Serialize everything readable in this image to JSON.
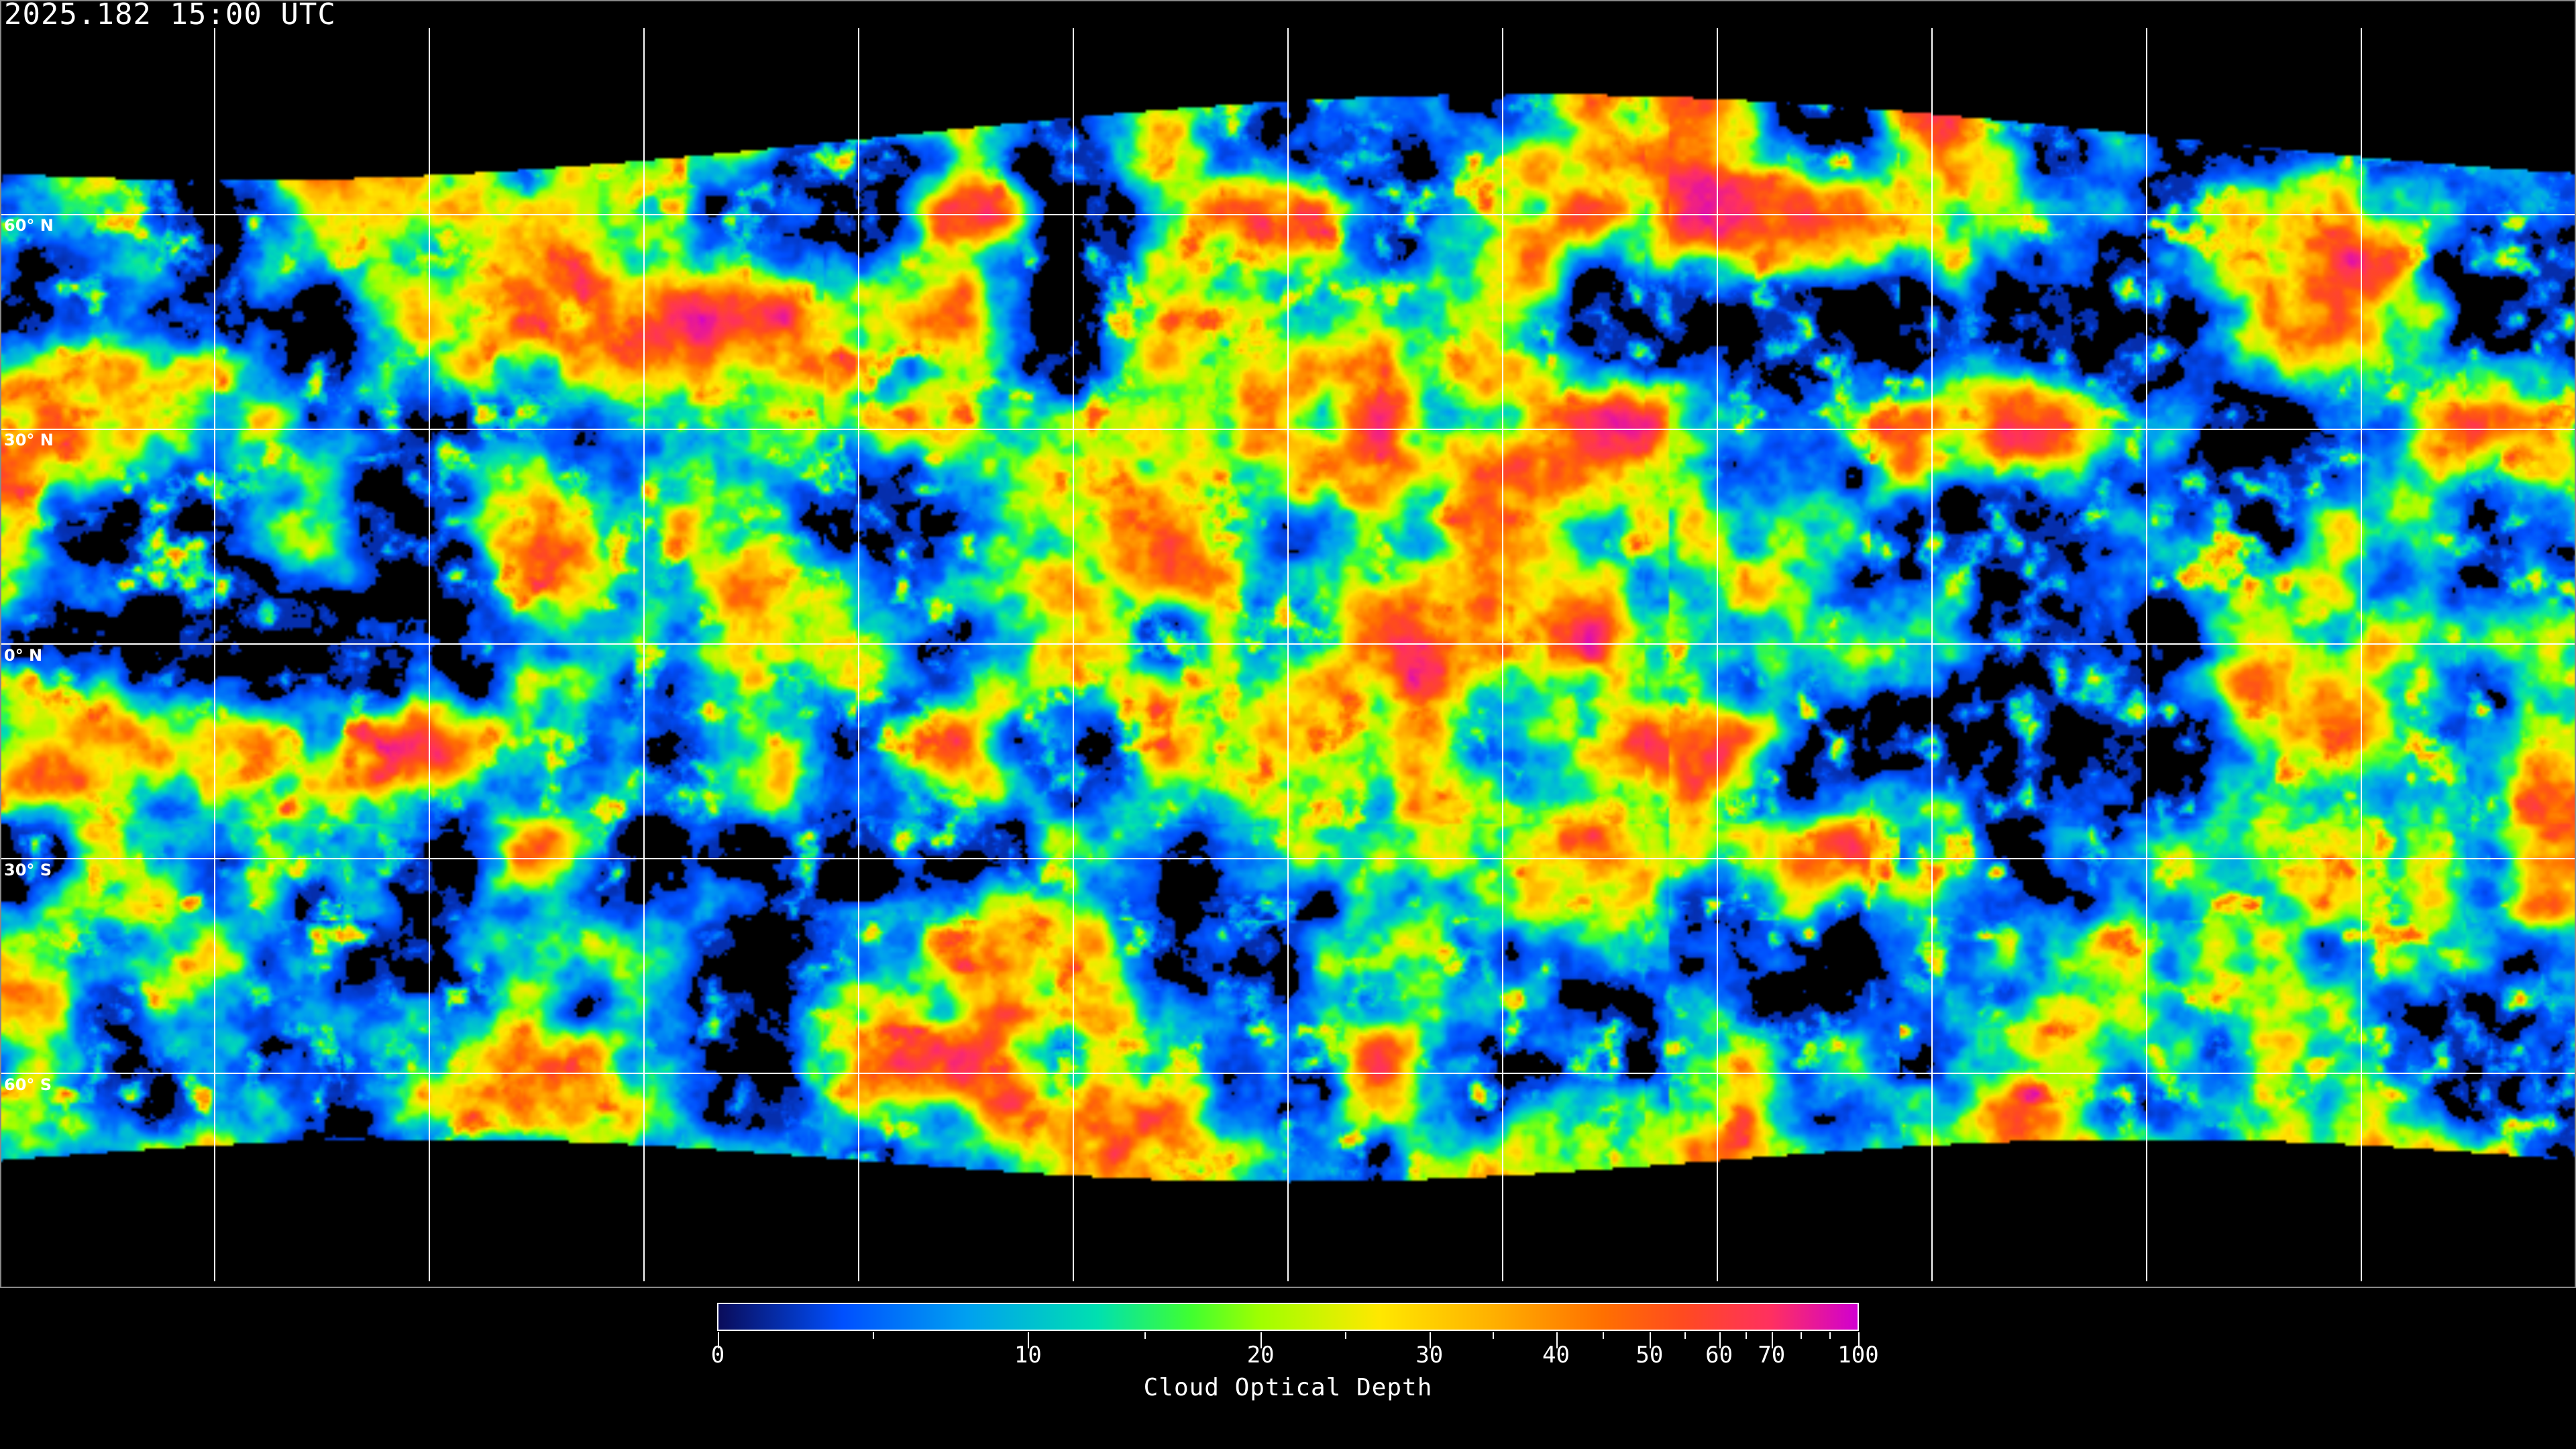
{
  "header": {
    "timestamp": "2025.182 15:00 UTC"
  },
  "map": {
    "projection": "equirectangular",
    "gridlines": true,
    "lat_labels": [
      "60° N",
      "30° N",
      "0° N",
      "30° S",
      "60° S"
    ],
    "lat_values": [
      60,
      30,
      0,
      -30,
      -60
    ],
    "lon_gridlines": [
      -150,
      -120,
      -90,
      -60,
      -30,
      0,
      30,
      60,
      90,
      120,
      150
    ]
  },
  "colorbar": {
    "title": "Cloud Optical Depth",
    "tick_labels": [
      "0",
      "10",
      "20",
      "30",
      "40",
      "50",
      "60",
      "70",
      "100"
    ],
    "tick_values": [
      0,
      10,
      20,
      30,
      40,
      50,
      60,
      70,
      100
    ],
    "minor_ticks": [
      5,
      15,
      25,
      35,
      45,
      55,
      65,
      80,
      90
    ],
    "color_stops": [
      {
        "value": 0,
        "color": "#0a0c5a"
      },
      {
        "value": 4,
        "color": "#0050ff"
      },
      {
        "value": 8,
        "color": "#00a0f0"
      },
      {
        "value": 13,
        "color": "#00e0b0"
      },
      {
        "value": 17,
        "color": "#40ff30"
      },
      {
        "value": 20,
        "color": "#a0ff00"
      },
      {
        "value": 27,
        "color": "#ffe800"
      },
      {
        "value": 35,
        "color": "#ffb000"
      },
      {
        "value": 45,
        "color": "#ff7000"
      },
      {
        "value": 55,
        "color": "#ff4a20"
      },
      {
        "value": 70,
        "color": "#ff3060"
      },
      {
        "value": 100,
        "color": "#d000d0"
      }
    ]
  }
}
